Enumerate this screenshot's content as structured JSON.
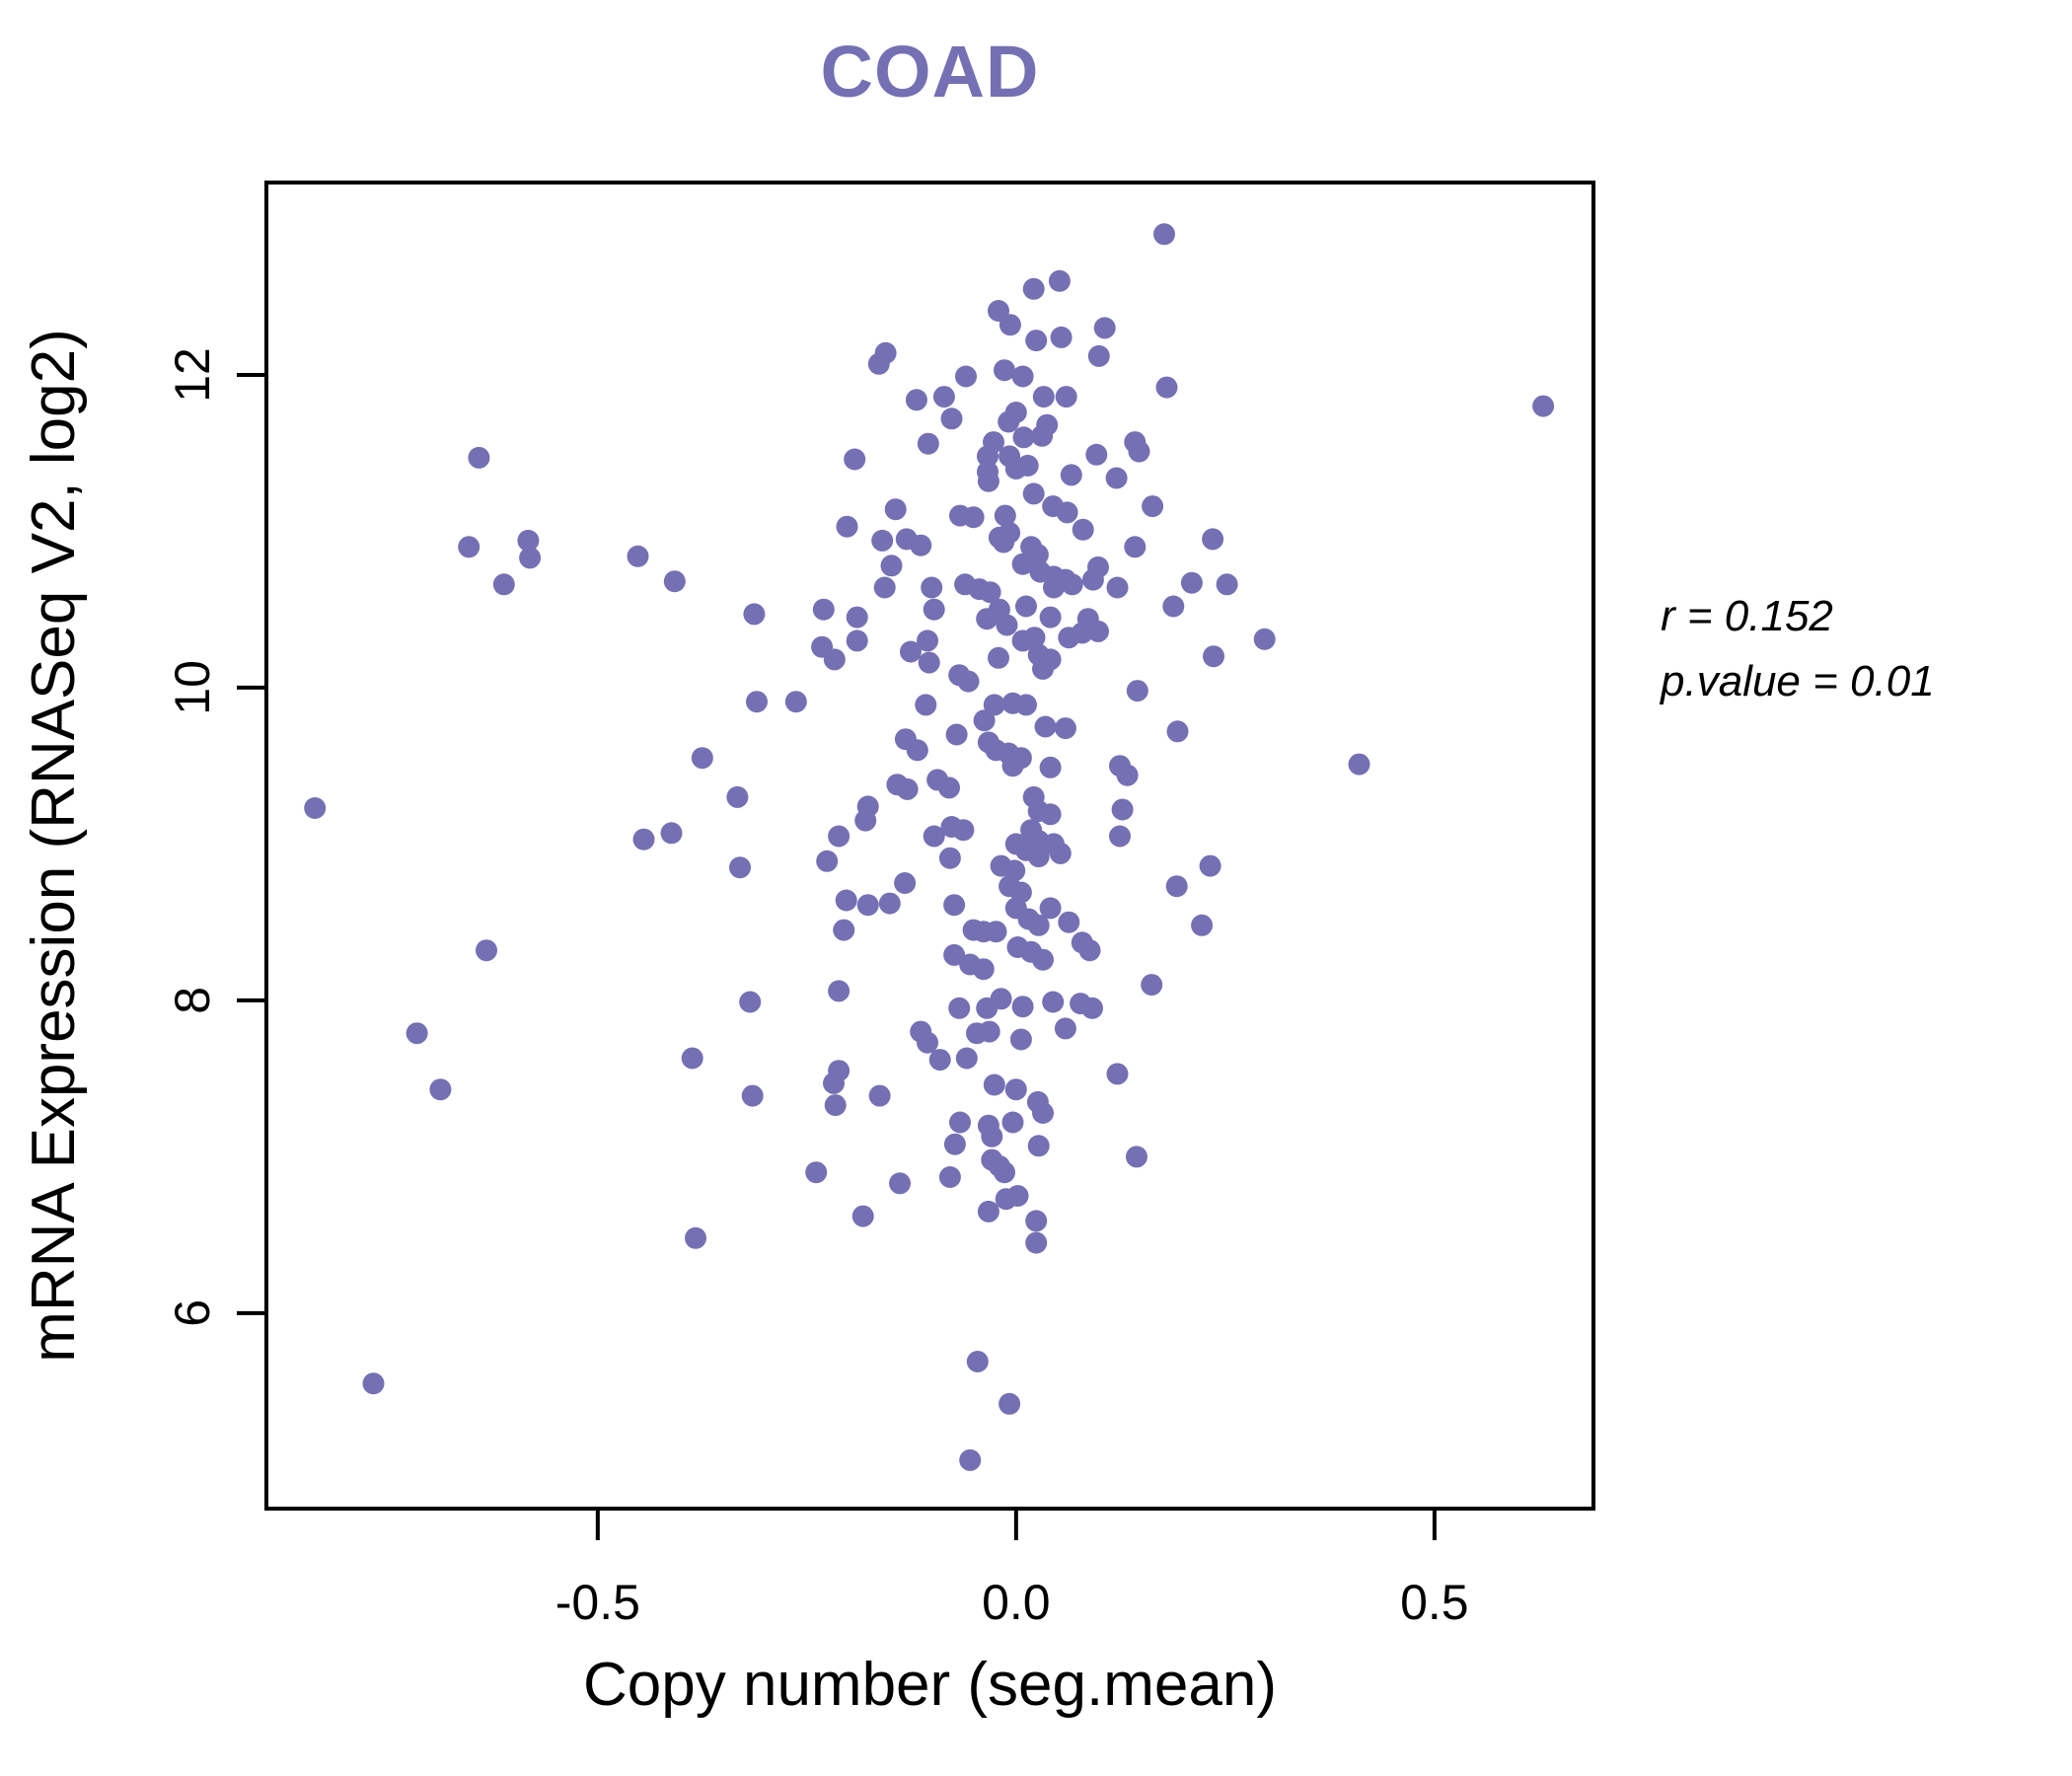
{
  "title": "COAD",
  "accent_color": "#7570b3",
  "annotation": {
    "line1": "r = 0.152",
    "line2": "p.value = 0.01"
  },
  "chart_data": {
    "type": "scatter",
    "title": "COAD",
    "xlabel": "Copy number (seg.mean)",
    "ylabel": "mRNA Expression (RNASeq V2, log2)",
    "xlim": [
      -0.896,
      0.69
    ],
    "ylim": [
      4.75,
      13.23
    ],
    "x_ticks": [
      -0.5,
      0.0,
      0.5
    ],
    "x_tick_labels": [
      "-0.5",
      "0.0",
      "0.5"
    ],
    "y_ticks": [
      6,
      8,
      10,
      12
    ],
    "y_tick_labels": [
      "6",
      "8",
      "10",
      "12"
    ],
    "grid": false,
    "legend": "none",
    "point_color": "#7570b3",
    "point_radius": 11,
    "annotations": [
      "r = 0.152",
      "p.value = 0.01"
    ],
    "series": [
      {
        "name": "samples",
        "points": [
          [
            -0.642,
            11.47
          ],
          [
            -0.654,
            10.9
          ],
          [
            -0.583,
            10.94
          ],
          [
            -0.581,
            10.83
          ],
          [
            -0.612,
            10.66
          ],
          [
            -0.452,
            10.84
          ],
          [
            -0.408,
            10.68
          ],
          [
            0.021,
            12.55
          ],
          [
            0.052,
            12.6
          ],
          [
            -0.021,
            12.41
          ],
          [
            -0.007,
            12.32
          ],
          [
            0.024,
            12.22
          ],
          [
            0.054,
            12.24
          ],
          [
            0.106,
            12.3
          ],
          [
            0.099,
            12.12
          ],
          [
            -0.156,
            12.14
          ],
          [
            -0.164,
            12.07
          ],
          [
            -0.06,
            11.99
          ],
          [
            -0.014,
            12.03
          ],
          [
            0.008,
            11.99
          ],
          [
            -0.119,
            11.84
          ],
          [
            -0.086,
            11.86
          ],
          [
            0.033,
            11.86
          ],
          [
            0.06,
            11.86
          ],
          [
            -0.077,
            11.72
          ],
          [
            0.0,
            11.76
          ],
          [
            0.037,
            11.68
          ],
          [
            -0.009,
            11.7
          ],
          [
            0.009,
            11.6
          ],
          [
            0.031,
            11.61
          ],
          [
            -0.105,
            11.56
          ],
          [
            -0.027,
            11.57
          ],
          [
            -0.034,
            11.48
          ],
          [
            -0.008,
            11.48
          ],
          [
            0.0,
            11.4
          ],
          [
            0.014,
            11.42
          ],
          [
            -0.034,
            11.38
          ],
          [
            -0.033,
            11.32
          ],
          [
            0.096,
            11.49
          ],
          [
            0.142,
            11.57
          ],
          [
            0.147,
            11.51
          ],
          [
            -0.193,
            11.46
          ],
          [
            0.066,
            11.36
          ],
          [
            0.12,
            11.34
          ],
          [
            0.021,
            11.24
          ],
          [
            0.044,
            11.16
          ],
          [
            0.061,
            11.12
          ],
          [
            -0.144,
            11.14
          ],
          [
            -0.202,
            11.03
          ],
          [
            -0.067,
            11.1
          ],
          [
            -0.051,
            11.09
          ],
          [
            -0.013,
            11.1
          ],
          [
            -0.008,
            10.99
          ],
          [
            -0.02,
            10.96
          ],
          [
            0.163,
            11.16
          ],
          [
            -0.16,
            10.94
          ],
          [
            -0.131,
            10.95
          ],
          [
            -0.114,
            10.91
          ],
          [
            -0.149,
            10.78
          ],
          [
            -0.015,
            10.93
          ],
          [
            0.018,
            10.9
          ],
          [
            0.026,
            10.85
          ],
          [
            0.008,
            10.79
          ],
          [
            0.029,
            10.74
          ],
          [
            0.045,
            10.71
          ],
          [
            0.059,
            10.69
          ],
          [
            0.08,
            11.01
          ],
          [
            0.098,
            10.77
          ],
          [
            0.142,
            10.9
          ],
          [
            -0.157,
            10.64
          ],
          [
            -0.101,
            10.64
          ],
          [
            -0.061,
            10.66
          ],
          [
            -0.044,
            10.63
          ],
          [
            -0.031,
            10.61
          ],
          [
            0.045,
            10.64
          ],
          [
            0.067,
            10.66
          ],
          [
            0.092,
            10.69
          ],
          [
            0.121,
            10.64
          ],
          [
            -0.098,
            10.5
          ],
          [
            -0.23,
            10.5
          ],
          [
            -0.313,
            10.47
          ],
          [
            -0.19,
            10.45
          ],
          [
            -0.02,
            10.5
          ],
          [
            0.012,
            10.52
          ],
          [
            0.041,
            10.45
          ],
          [
            0.086,
            10.44
          ],
          [
            -0.011,
            10.4
          ],
          [
            -0.035,
            10.44
          ],
          [
            0.177,
            12.9
          ],
          [
            0.18,
            11.92
          ],
          [
            0.63,
            11.8
          ],
          [
            0.235,
            10.95
          ],
          [
            0.21,
            10.67
          ],
          [
            0.252,
            10.66
          ],
          [
            0.188,
            10.52
          ],
          [
            -0.838,
            9.23
          ],
          [
            -0.445,
            9.03
          ],
          [
            -0.412,
            9.07
          ],
          [
            -0.633,
            8.32
          ],
          [
            -0.716,
            7.79
          ],
          [
            -0.375,
            9.55
          ],
          [
            -0.387,
            7.63
          ],
          [
            -0.232,
            10.26
          ],
          [
            -0.217,
            10.18
          ],
          [
            -0.19,
            10.3
          ],
          [
            -0.126,
            10.23
          ],
          [
            -0.104,
            10.16
          ],
          [
            -0.106,
            10.3
          ],
          [
            -0.068,
            10.08
          ],
          [
            -0.057,
            10.04
          ],
          [
            -0.021,
            10.19
          ],
          [
            0.008,
            10.3
          ],
          [
            0.022,
            10.32
          ],
          [
            0.027,
            10.21
          ],
          [
            0.032,
            10.12
          ],
          [
            0.041,
            10.18
          ],
          [
            0.063,
            10.32
          ],
          [
            0.079,
            10.35
          ],
          [
            0.098,
            10.36
          ],
          [
            -0.026,
            9.89
          ],
          [
            -0.004,
            9.9
          ],
          [
            0.012,
            9.89
          ],
          [
            -0.038,
            9.79
          ],
          [
            0.035,
            9.75
          ],
          [
            0.059,
            9.74
          ],
          [
            0.145,
            9.98
          ],
          [
            -0.31,
            9.91
          ],
          [
            -0.263,
            9.91
          ],
          [
            -0.108,
            9.89
          ],
          [
            -0.071,
            9.7
          ],
          [
            -0.132,
            9.67
          ],
          [
            -0.118,
            9.6
          ],
          [
            -0.033,
            9.65
          ],
          [
            -0.024,
            9.6
          ],
          [
            -0.009,
            9.58
          ],
          [
            0.006,
            9.55
          ],
          [
            -0.004,
            9.5
          ],
          [
            0.041,
            9.49
          ],
          [
            0.124,
            9.5
          ],
          [
            0.133,
            9.44
          ],
          [
            -0.333,
            9.3
          ],
          [
            -0.142,
            9.38
          ],
          [
            -0.13,
            9.35
          ],
          [
            -0.094,
            9.41
          ],
          [
            -0.08,
            9.36
          ],
          [
            -0.177,
            9.24
          ],
          [
            -0.18,
            9.15
          ],
          [
            0.021,
            9.3
          ],
          [
            0.027,
            9.21
          ],
          [
            0.041,
            9.19
          ],
          [
            0.018,
            9.09
          ],
          [
            0.027,
            9.02
          ],
          [
            0.045,
            9.0
          ],
          [
            0.053,
            8.94
          ],
          [
            0.027,
            8.92
          ],
          [
            0.012,
            8.96
          ],
          [
            0.0,
            9.0
          ],
          [
            0.127,
            9.22
          ],
          [
            0.124,
            9.05
          ],
          [
            -0.212,
            9.05
          ],
          [
            -0.077,
            9.11
          ],
          [
            -0.063,
            9.09
          ],
          [
            -0.098,
            9.05
          ],
          [
            -0.226,
            8.89
          ],
          [
            -0.079,
            8.91
          ],
          [
            -0.33,
            8.85
          ],
          [
            -0.018,
            8.86
          ],
          [
            -0.002,
            8.83
          ],
          [
            -0.008,
            8.73
          ],
          [
            0.006,
            8.69
          ],
          [
            -0.133,
            8.75
          ],
          [
            -0.203,
            8.64
          ],
          [
            -0.177,
            8.61
          ],
          [
            -0.151,
            8.62
          ],
          [
            -0.074,
            8.61
          ],
          [
            0.0,
            8.59
          ],
          [
            0.015,
            8.52
          ],
          [
            0.027,
            8.48
          ],
          [
            0.041,
            8.59
          ],
          [
            0.063,
            8.5
          ],
          [
            0.079,
            8.37
          ],
          [
            0.088,
            8.32
          ],
          [
            -0.206,
            8.45
          ],
          [
            -0.051,
            8.45
          ],
          [
            -0.039,
            8.44
          ],
          [
            -0.024,
            8.44
          ],
          [
            0.002,
            8.34
          ],
          [
            0.018,
            8.31
          ],
          [
            0.032,
            8.26
          ],
          [
            -0.074,
            8.29
          ],
          [
            -0.055,
            8.23
          ],
          [
            -0.039,
            8.2
          ],
          [
            0.162,
            8.1
          ],
          [
            -0.318,
            7.99
          ],
          [
            -0.212,
            8.06
          ],
          [
            -0.068,
            7.95
          ],
          [
            -0.035,
            7.95
          ],
          [
            -0.018,
            8.01
          ],
          [
            0.008,
            7.96
          ],
          [
            0.044,
            7.99
          ],
          [
            0.077,
            7.98
          ],
          [
            0.091,
            7.95
          ],
          [
            -0.114,
            7.8
          ],
          [
            -0.106,
            7.73
          ],
          [
            -0.047,
            7.79
          ],
          [
            -0.032,
            7.8
          ],
          [
            0.006,
            7.75
          ],
          [
            0.059,
            7.82
          ],
          [
            -0.091,
            7.62
          ],
          [
            -0.059,
            7.63
          ],
          [
            -0.212,
            7.55
          ],
          [
            0.121,
            7.53
          ],
          [
            0.297,
            10.31
          ],
          [
            0.236,
            10.2
          ],
          [
            0.193,
            9.72
          ],
          [
            0.41,
            9.51
          ],
          [
            0.232,
            8.86
          ],
          [
            0.192,
            8.73
          ],
          [
            0.222,
            8.48
          ],
          [
            -0.688,
            7.43
          ],
          [
            -0.383,
            6.48
          ],
          [
            -0.768,
            5.55
          ],
          [
            -0.315,
            7.39
          ],
          [
            -0.218,
            7.47
          ],
          [
            -0.216,
            7.33
          ],
          [
            -0.163,
            7.39
          ],
          [
            -0.067,
            7.22
          ],
          [
            -0.073,
            7.08
          ],
          [
            -0.029,
            7.13
          ],
          [
            -0.033,
            7.2
          ],
          [
            -0.004,
            7.22
          ],
          [
            0.026,
            7.35
          ],
          [
            0.032,
            7.28
          ],
          [
            0.0,
            7.43
          ],
          [
            -0.026,
            7.46
          ],
          [
            0.027,
            7.07
          ],
          [
            0.144,
            7.0
          ],
          [
            -0.239,
            6.9
          ],
          [
            -0.139,
            6.83
          ],
          [
            -0.079,
            6.87
          ],
          [
            -0.029,
            6.98
          ],
          [
            -0.02,
            6.94
          ],
          [
            -0.014,
            6.9
          ],
          [
            -0.033,
            6.65
          ],
          [
            -0.012,
            6.73
          ],
          [
            0.002,
            6.75
          ],
          [
            0.024,
            6.59
          ],
          [
            0.024,
            6.45
          ],
          [
            -0.183,
            6.62
          ],
          [
            -0.046,
            5.69
          ],
          [
            -0.008,
            5.42
          ],
          [
            -0.055,
            5.06
          ]
        ]
      }
    ]
  }
}
